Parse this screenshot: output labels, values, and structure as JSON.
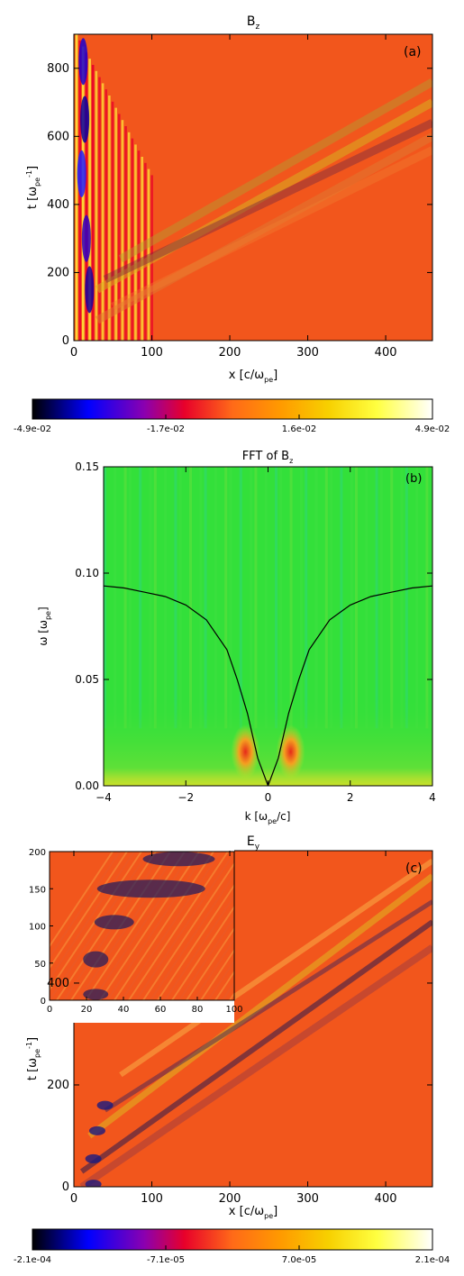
{
  "figure": {
    "panels": [
      {
        "id": "a",
        "title_main": "B",
        "title_sub": "z",
        "label": "(a)",
        "xlabel": "x [c/ω",
        "xlabel_sub": "pe",
        "xlabel_end": "]",
        "ylabel": "t [ω",
        "ylabel_sub": "pe",
        "ylabel_sup": "-1",
        "ylabel_end": "]"
      },
      {
        "id": "b",
        "title_main": "FFT of B",
        "title_sub": "z",
        "label": "(b)",
        "xlabel": "k [ω",
        "xlabel_sub": "pe",
        "xlabel_end": "/c]",
        "ylabel": "ω [ω",
        "ylabel_sub": "pe",
        "ylabel_end": "]"
      },
      {
        "id": "c",
        "title_main": "E",
        "title_sub": "y",
        "label": "(c)",
        "xlabel": "x [c/ω",
        "xlabel_sub": "pe",
        "xlabel_end": "]",
        "ylabel": "t [ω",
        "ylabel_sub": "pe",
        "ylabel_sup": "-1",
        "ylabel_end": "]"
      }
    ],
    "colors": {
      "background_a": "#f2561c",
      "background_b": "#33e03a",
      "background_c": "#f2561c"
    }
  },
  "chart_data": [
    {
      "type": "heatmap",
      "panel": "a",
      "title": "B_z",
      "xlabel": "x [c/ω_pe]",
      "ylabel": "t [ω_pe^-1]",
      "xlim": [
        0,
        460
      ],
      "ylim": [
        0,
        900
      ],
      "xticks": [
        0,
        100,
        200,
        300,
        400
      ],
      "yticks": [
        0,
        200,
        400,
        600,
        800
      ],
      "xtick_labels": [
        "0",
        "100",
        "200",
        "300",
        "400"
      ],
      "ytick_labels": [
        "0",
        "200",
        "400",
        "600",
        "800"
      ],
      "colorbar": {
        "min": -0.049,
        "max": 0.049,
        "tick_labels": [
          "-4.9e-02",
          "-1.7e-02",
          "1.6e-02",
          "4.9e-02"
        ],
        "colors": [
          "#000000",
          "#0000ff",
          "#8b00b0",
          "#e8002a",
          "#ff6a18",
          "#ff9a00",
          "#f7d000",
          "#ffff40",
          "#ffffff"
        ]
      }
    },
    {
      "type": "heatmap",
      "panel": "b",
      "title": "FFT of B_z",
      "xlabel": "k [ω_pe/c]",
      "ylabel": "ω [ω_pe]",
      "xlim": [
        -4,
        4
      ],
      "ylim": [
        0,
        0.15
      ],
      "xticks": [
        -4,
        -2,
        0,
        2,
        4
      ],
      "yticks": [
        0,
        0.05,
        0.1,
        0.15
      ],
      "xtick_labels": [
        "−4",
        "−2",
        "0",
        "2",
        "4"
      ],
      "ytick_labels": [
        "0.00",
        "0.05",
        "0.10",
        "0.15"
      ],
      "curve": {
        "x": [
          -4,
          -3.5,
          -3,
          -2.5,
          -2,
          -1.5,
          -1,
          -0.75,
          -0.5,
          -0.25,
          0,
          0.25,
          0.5,
          0.75,
          1,
          1.5,
          2,
          2.5,
          3,
          3.5,
          4
        ],
        "y": [
          0.094,
          0.093,
          0.091,
          0.089,
          0.085,
          0.078,
          0.064,
          0.05,
          0.034,
          0.013,
          0.0,
          0.013,
          0.034,
          0.05,
          0.064,
          0.078,
          0.085,
          0.089,
          0.091,
          0.093,
          0.094
        ]
      }
    },
    {
      "type": "heatmap",
      "panel": "c",
      "title": "E_y",
      "xlabel": "x [c/ω_pe]",
      "ylabel": "t [ω_pe^-1]",
      "xlim": [
        0,
        460
      ],
      "ylim": [
        0,
        660
      ],
      "xticks": [
        0,
        100,
        200,
        300,
        400
      ],
      "yticks": [
        0,
        200,
        400
      ],
      "xtick_labels": [
        "0",
        "100",
        "200",
        "300",
        "400"
      ],
      "ytick_labels": [
        "0",
        "200",
        "400"
      ],
      "inset": {
        "xlim": [
          0,
          100
        ],
        "ylim": [
          0,
          200
        ],
        "xtick_labels": [
          "0",
          "20",
          "40",
          "60",
          "80",
          "100"
        ],
        "ytick_labels": [
          "0",
          "50",
          "100",
          "150",
          "200"
        ]
      },
      "colorbar": {
        "min": -0.00021,
        "max": 0.00021,
        "tick_labels": [
          "-2.1e-04",
          "-7.1e-05",
          "7.0e-05",
          "2.1e-04"
        ],
        "colors": [
          "#000000",
          "#0000ff",
          "#8b00b0",
          "#e8002a",
          "#ff6a18",
          "#ff9a00",
          "#f7d000",
          "#ffff40",
          "#ffffff"
        ]
      }
    }
  ]
}
